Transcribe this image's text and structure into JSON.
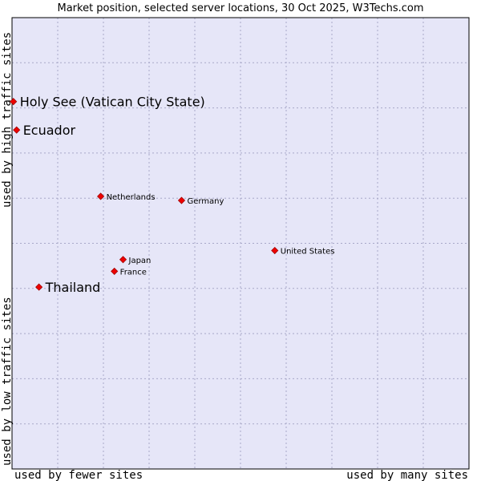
{
  "colors": {
    "plot_background": "#e6e6f8",
    "plot_border": "#000000",
    "grid": "#a8a8c8",
    "marker": "#ee0000",
    "marker_outline": "#a00000"
  },
  "chart_data": {
    "type": "scatter",
    "title": "Market position, selected server locations, 30 Oct 2025, W3Techs.com",
    "xlabel_left": "used by fewer sites",
    "xlabel_right": "used by many sites",
    "ylabel_low": "used by low traffic sites",
    "ylabel_high": "used by high traffic sites",
    "xlim": [
      0,
      100
    ],
    "ylim": [
      0,
      100
    ],
    "grid": true,
    "points": [
      {
        "name": "Holy See (Vatican City State)",
        "x": 0.3,
        "y": 81.4,
        "emphasis": true
      },
      {
        "name": "Ecuador",
        "x": 1.0,
        "y": 75.1,
        "emphasis": true
      },
      {
        "name": "Netherlands",
        "x": 19.4,
        "y": 60.4,
        "emphasis": false
      },
      {
        "name": "Germany",
        "x": 37.1,
        "y": 59.5,
        "emphasis": false
      },
      {
        "name": "United States",
        "x": 57.5,
        "y": 48.4,
        "emphasis": false
      },
      {
        "name": "Japan",
        "x": 24.3,
        "y": 46.4,
        "emphasis": false
      },
      {
        "name": "France",
        "x": 22.4,
        "y": 43.8,
        "emphasis": false
      },
      {
        "name": "Thailand",
        "x": 5.9,
        "y": 40.3,
        "emphasis": true
      }
    ]
  }
}
